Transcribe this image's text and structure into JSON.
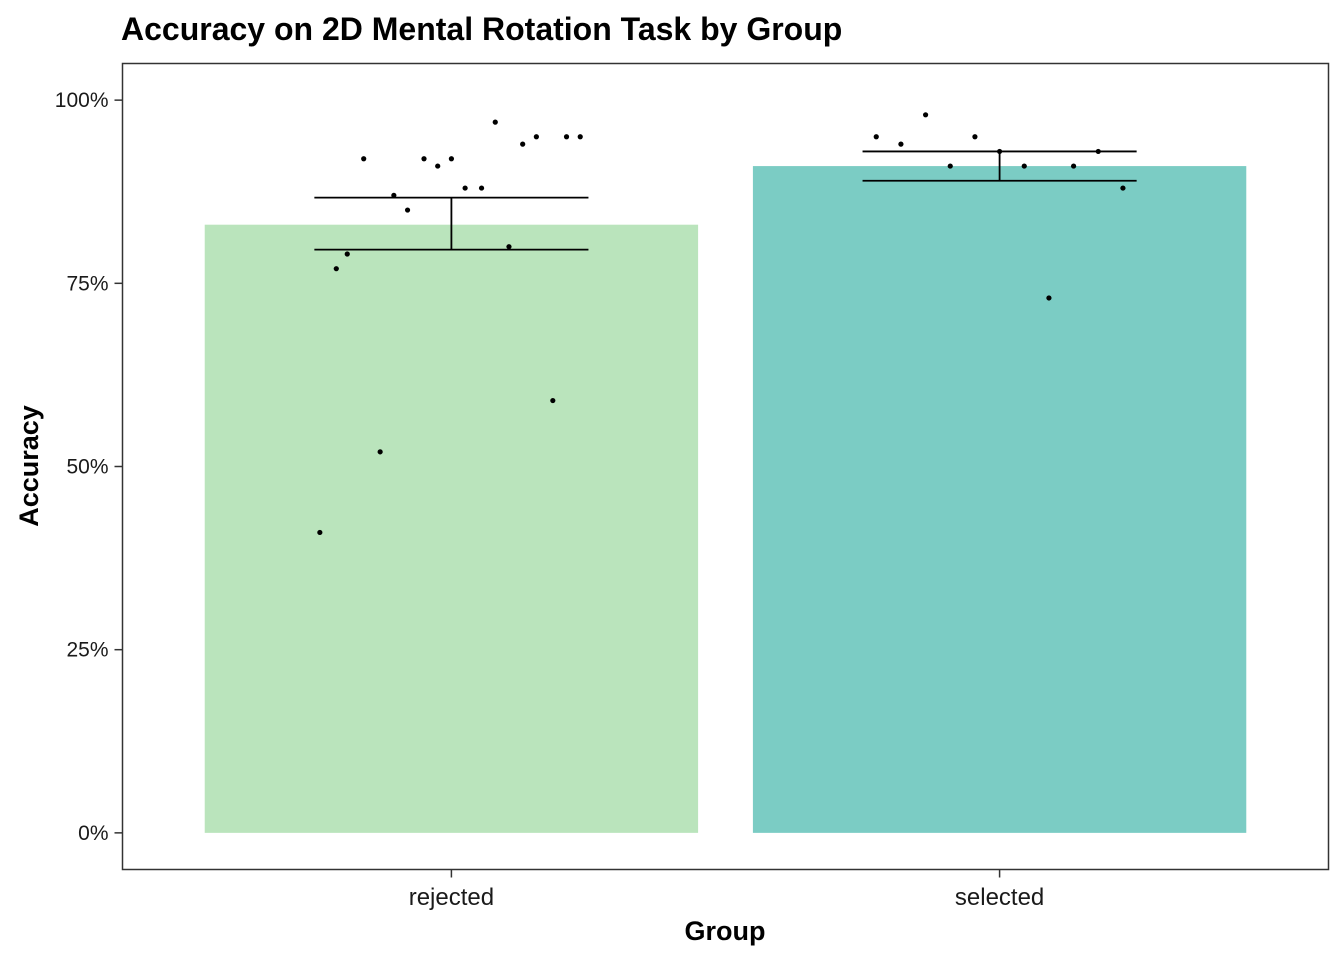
{
  "chart_data": {
    "type": "bar",
    "title": "Accuracy on 2D Mental Rotation Task by Group",
    "xlabel": "Group",
    "ylabel": "Accuracy",
    "categories": [
      "rejected",
      "selected"
    ],
    "values": [
      0.83,
      0.91
    ],
    "error_bars": [
      {
        "low": 0.796,
        "high": 0.867
      },
      {
        "low": 0.89,
        "high": 0.93
      }
    ],
    "bar_colors": [
      "#bae4bc",
      "#7bccc4"
    ],
    "yticks": [
      0,
      0.25,
      0.5,
      0.75,
      1.0
    ],
    "ytick_labels": [
      "0%",
      "25%",
      "50%",
      "75%",
      "100%"
    ],
    "ylim": [
      -0.05,
      1.05
    ],
    "grid": false,
    "legend": "none",
    "points": [
      {
        "group": "rejected",
        "jitter": -0.24,
        "value": 0.41
      },
      {
        "group": "rejected",
        "jitter": -0.21,
        "value": 0.77
      },
      {
        "group": "rejected",
        "jitter": -0.19,
        "value": 0.79
      },
      {
        "group": "rejected",
        "jitter": -0.16,
        "value": 0.92
      },
      {
        "group": "rejected",
        "jitter": -0.13,
        "value": 0.52
      },
      {
        "group": "rejected",
        "jitter": -0.105,
        "value": 0.87
      },
      {
        "group": "rejected",
        "jitter": -0.08,
        "value": 0.85
      },
      {
        "group": "rejected",
        "jitter": -0.05,
        "value": 0.92
      },
      {
        "group": "rejected",
        "jitter": -0.025,
        "value": 0.91
      },
      {
        "group": "rejected",
        "jitter": 0.0,
        "value": 0.92
      },
      {
        "group": "rejected",
        "jitter": 0.025,
        "value": 0.88
      },
      {
        "group": "rejected",
        "jitter": 0.055,
        "value": 0.88
      },
      {
        "group": "rejected",
        "jitter": 0.08,
        "value": 0.97
      },
      {
        "group": "rejected",
        "jitter": 0.105,
        "value": 0.8
      },
      {
        "group": "rejected",
        "jitter": 0.13,
        "value": 0.94
      },
      {
        "group": "rejected",
        "jitter": 0.155,
        "value": 0.95
      },
      {
        "group": "rejected",
        "jitter": 0.185,
        "value": 0.59
      },
      {
        "group": "rejected",
        "jitter": 0.21,
        "value": 0.95
      },
      {
        "group": "rejected",
        "jitter": 0.235,
        "value": 0.95
      },
      {
        "group": "selected",
        "jitter": -0.225,
        "value": 0.95
      },
      {
        "group": "selected",
        "jitter": -0.18,
        "value": 0.94
      },
      {
        "group": "selected",
        "jitter": -0.135,
        "value": 0.98
      },
      {
        "group": "selected",
        "jitter": -0.09,
        "value": 0.91
      },
      {
        "group": "selected",
        "jitter": -0.045,
        "value": 0.95
      },
      {
        "group": "selected",
        "jitter": 0.0,
        "value": 0.93
      },
      {
        "group": "selected",
        "jitter": 0.045,
        "value": 0.91
      },
      {
        "group": "selected",
        "jitter": 0.09,
        "value": 0.73
      },
      {
        "group": "selected",
        "jitter": 0.135,
        "value": 0.91
      },
      {
        "group": "selected",
        "jitter": 0.18,
        "value": 0.93
      },
      {
        "group": "selected",
        "jitter": 0.225,
        "value": 0.88
      }
    ]
  }
}
